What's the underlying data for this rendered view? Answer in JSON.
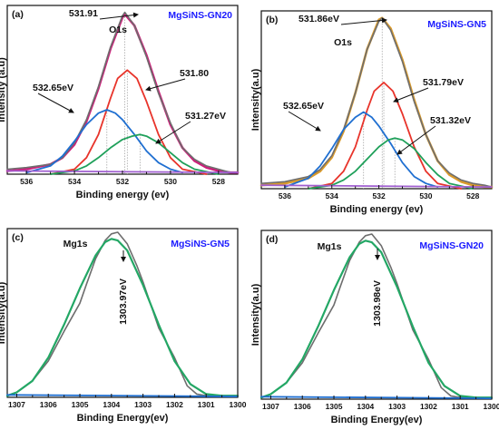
{
  "chart_data": [
    {
      "type": "line",
      "panel_label": "(a)",
      "title": "MgSiNS-GN20",
      "title_color": "#1a1aff",
      "core_level": "O1s",
      "xlabel": "Binding energy (ev)",
      "ylabel": "Intensity (a.u)",
      "xlim": [
        536.8,
        527.2
      ],
      "x_reversed": true,
      "xticks": [
        "536",
        "534",
        "532",
        "530",
        "528"
      ],
      "ylim": [
        0,
        1.0
      ],
      "annotations": [
        "531.91",
        "531.80",
        "532.65eV",
        "531.27eV"
      ],
      "series": [
        {
          "color": "#cc1f7a",
          "role": "envelope",
          "x": [
            536.8,
            536,
            535,
            534.5,
            534,
            533.5,
            533,
            532.5,
            532,
            531.9,
            531.5,
            531,
            530.5,
            530,
            529.5,
            529,
            528.5,
            528,
            527.5,
            527.2
          ],
          "y": [
            0.02,
            0.03,
            0.06,
            0.1,
            0.18,
            0.32,
            0.52,
            0.76,
            0.95,
            0.97,
            0.9,
            0.72,
            0.5,
            0.3,
            0.16,
            0.08,
            0.04,
            0.02,
            0.01,
            0.01
          ]
        },
        {
          "color": "#6e6e6e",
          "role": "raw",
          "x": [
            536.8,
            536,
            535,
            534.5,
            534,
            533.5,
            533,
            532.5,
            532,
            531.9,
            531.5,
            531,
            530.5,
            530,
            529.5,
            529,
            528.5,
            528,
            527.5,
            527.2
          ],
          "y": [
            0.03,
            0.04,
            0.06,
            0.1,
            0.19,
            0.33,
            0.53,
            0.77,
            0.96,
            0.98,
            0.9,
            0.71,
            0.49,
            0.31,
            0.16,
            0.09,
            0.05,
            0.03,
            0.01,
            0.01
          ]
        },
        {
          "color": "#e8342b",
          "role": "component",
          "x": [
            535,
            534,
            533.5,
            533,
            532.5,
            532.2,
            531.8,
            531.4,
            531,
            530.5,
            530,
            529.5,
            528.5
          ],
          "y": [
            0,
            0.03,
            0.1,
            0.24,
            0.46,
            0.58,
            0.63,
            0.58,
            0.44,
            0.24,
            0.1,
            0.03,
            0
          ]
        },
        {
          "color": "#1f6fd1",
          "role": "component",
          "x": [
            536,
            535,
            534.5,
            534,
            533.5,
            533,
            532.65,
            532.3,
            532,
            531.5,
            531,
            530.5,
            530,
            529.5
          ],
          "y": [
            0.01,
            0.05,
            0.11,
            0.2,
            0.3,
            0.37,
            0.39,
            0.37,
            0.33,
            0.24,
            0.14,
            0.07,
            0.03,
            0.01
          ]
        },
        {
          "color": "#1fa05a",
          "role": "component",
          "x": [
            535,
            534,
            533.5,
            533,
            532.5,
            532,
            531.6,
            531.27,
            531,
            530.5,
            530,
            529.5,
            529,
            528
          ],
          "y": [
            0,
            0.02,
            0.05,
            0.1,
            0.16,
            0.21,
            0.23,
            0.24,
            0.23,
            0.19,
            0.13,
            0.07,
            0.03,
            0
          ]
        },
        {
          "color": "#a05fd0",
          "role": "background",
          "x": [
            536.8,
            527.2
          ],
          "y": [
            0.02,
            0.01
          ]
        }
      ]
    },
    {
      "type": "line",
      "panel_label": "(b)",
      "title": "MgSiNS-GN5",
      "title_color": "#1a1aff",
      "core_level": "O1s",
      "xlabel": "Binding energy (ev)",
      "ylabel": "Intensity(a.u)",
      "xlim": [
        537,
        527.2
      ],
      "x_reversed": true,
      "xticks": [
        "536",
        "534",
        "532",
        "530",
        "528"
      ],
      "ylim": [
        0,
        1.0
      ],
      "annotations": [
        "531.86eV",
        "531.79eV",
        "532.65eV",
        "531.32eV"
      ],
      "series": [
        {
          "color": "#d99a2b",
          "role": "envelope",
          "x": [
            537,
            536,
            535,
            534.5,
            534,
            533.5,
            533,
            532.5,
            532,
            531.86,
            531.5,
            531,
            530.5,
            530,
            529.5,
            529,
            528.5,
            528,
            527.5,
            527.2
          ],
          "y": [
            0.02,
            0.03,
            0.06,
            0.1,
            0.18,
            0.33,
            0.55,
            0.8,
            0.97,
            0.98,
            0.92,
            0.74,
            0.51,
            0.31,
            0.16,
            0.08,
            0.04,
            0.02,
            0.01,
            0.01
          ]
        },
        {
          "color": "#6e6e6e",
          "role": "raw",
          "x": [
            537,
            536,
            535,
            534.5,
            534,
            533.5,
            533,
            532.5,
            532,
            531.86,
            531.5,
            531,
            530.5,
            530,
            529.5,
            529,
            528.5,
            528,
            527.5,
            527.2
          ],
          "y": [
            0.03,
            0.04,
            0.07,
            0.11,
            0.19,
            0.34,
            0.55,
            0.8,
            0.96,
            0.98,
            0.91,
            0.73,
            0.5,
            0.31,
            0.16,
            0.09,
            0.05,
            0.03,
            0.02,
            0.01
          ]
        },
        {
          "color": "#e8342b",
          "role": "component",
          "x": [
            535,
            534,
            533.5,
            533,
            532.5,
            532.2,
            531.79,
            531.4,
            531,
            530.5,
            530,
            529.5,
            528.5
          ],
          "y": [
            0,
            0.03,
            0.1,
            0.24,
            0.45,
            0.56,
            0.61,
            0.56,
            0.43,
            0.24,
            0.1,
            0.03,
            0
          ]
        },
        {
          "color": "#1f6fd1",
          "role": "component",
          "x": [
            536,
            535,
            534.5,
            534,
            533.5,
            533,
            532.65,
            532.3,
            532,
            531.5,
            531,
            530.5,
            530,
            529.5
          ],
          "y": [
            0.01,
            0.06,
            0.13,
            0.23,
            0.34,
            0.41,
            0.44,
            0.41,
            0.36,
            0.26,
            0.15,
            0.07,
            0.03,
            0.01
          ]
        },
        {
          "color": "#1fa05a",
          "role": "component",
          "x": [
            535,
            534,
            533.5,
            533,
            532.5,
            532,
            531.6,
            531.32,
            531,
            530.5,
            530,
            529.5,
            529,
            528
          ],
          "y": [
            0,
            0.02,
            0.05,
            0.1,
            0.17,
            0.24,
            0.28,
            0.29,
            0.28,
            0.23,
            0.15,
            0.08,
            0.03,
            0
          ]
        },
        {
          "color": "#a05fd0",
          "role": "background",
          "x": [
            537,
            527.2
          ],
          "y": [
            0.02,
            0.01
          ]
        }
      ]
    },
    {
      "type": "line",
      "panel_label": "(c)",
      "title": "MgSiNS-GN5",
      "title_color": "#1a1aff",
      "core_level": "Mg1s",
      "xlabel": "Binding Energy(ev)",
      "ylabel": "Intensity(a.u)",
      "xlim": [
        1307.3,
        1300
      ],
      "x_reversed": true,
      "xticks": [
        "1307",
        "1306",
        "1305",
        "1304",
        "1303",
        "1302",
        "1301",
        "1300"
      ],
      "ylim": [
        0,
        1.0
      ],
      "annotations": [
        "1303.97eV"
      ],
      "series": [
        {
          "color": "#6e6e6e",
          "role": "raw",
          "x": [
            1307.3,
            1307,
            1306.5,
            1306,
            1305.5,
            1305,
            1304.8,
            1304.5,
            1304.2,
            1304,
            1303.8,
            1303.5,
            1303.2,
            1303,
            1302.5,
            1302,
            1301.6,
            1301.3,
            1301,
            1300.5,
            1300
          ],
          "y": [
            0.01,
            0.03,
            0.1,
            0.22,
            0.4,
            0.57,
            0.68,
            0.84,
            0.95,
            0.99,
            1.0,
            0.93,
            0.8,
            0.7,
            0.42,
            0.24,
            0.07,
            0.02,
            0.01,
            0.01,
            0.01
          ]
        },
        {
          "color": "#23a765",
          "role": "fit",
          "x": [
            1307.3,
            1307,
            1306.5,
            1306,
            1305.5,
            1305,
            1304.5,
            1304.2,
            1304,
            1303.8,
            1303.5,
            1303,
            1302.5,
            1302,
            1301.5,
            1301,
            1300.5,
            1300
          ],
          "y": [
            0.01,
            0.03,
            0.1,
            0.24,
            0.44,
            0.66,
            0.86,
            0.94,
            0.96,
            0.95,
            0.89,
            0.68,
            0.44,
            0.22,
            0.08,
            0.02,
            0.01,
            0.01
          ]
        },
        {
          "color": "#1f6fd1",
          "role": "background",
          "x": [
            1307.3,
            1300
          ],
          "y": [
            0.015,
            0.005
          ]
        }
      ]
    },
    {
      "type": "line",
      "panel_label": "(d)",
      "title": "MgSiNS-GN20",
      "title_color": "#1a1aff",
      "core_level": "Mg1s",
      "xlabel": "Binding Energy(ev)",
      "ylabel": "Intensity(a.u)",
      "xlim": [
        1307.3,
        1300
      ],
      "x_reversed": true,
      "xticks": [
        "1307",
        "1306",
        "1305",
        "1304",
        "1303",
        "1302",
        "1301",
        "1300"
      ],
      "ylim": [
        0,
        1.0
      ],
      "annotations": [
        "1303.98eV"
      ],
      "series": [
        {
          "color": "#6e6e6e",
          "role": "raw",
          "x": [
            1307.3,
            1307,
            1306.5,
            1306,
            1305.5,
            1305,
            1304.8,
            1304.5,
            1304.2,
            1304,
            1303.8,
            1303.5,
            1303.2,
            1303,
            1302.5,
            1302,
            1301.6,
            1301.3,
            1301,
            1300.5,
            1300
          ],
          "y": [
            0.01,
            0.03,
            0.1,
            0.22,
            0.4,
            0.57,
            0.68,
            0.84,
            0.95,
            0.99,
            1.0,
            0.93,
            0.8,
            0.7,
            0.42,
            0.24,
            0.07,
            0.02,
            0.01,
            0.01,
            0.01
          ]
        },
        {
          "color": "#23a765",
          "role": "fit",
          "x": [
            1307.3,
            1307,
            1306.5,
            1306,
            1305.5,
            1305,
            1304.5,
            1304.2,
            1304,
            1303.8,
            1303.5,
            1303,
            1302.5,
            1302,
            1301.5,
            1301,
            1300.5,
            1300
          ],
          "y": [
            0.01,
            0.03,
            0.1,
            0.24,
            0.44,
            0.66,
            0.86,
            0.94,
            0.96,
            0.95,
            0.89,
            0.68,
            0.44,
            0.22,
            0.08,
            0.02,
            0.01,
            0.01
          ]
        },
        {
          "color": "#1f6fd1",
          "role": "background",
          "x": [
            1307.3,
            1300
          ],
          "y": [
            0.015,
            0.005
          ]
        }
      ]
    }
  ]
}
